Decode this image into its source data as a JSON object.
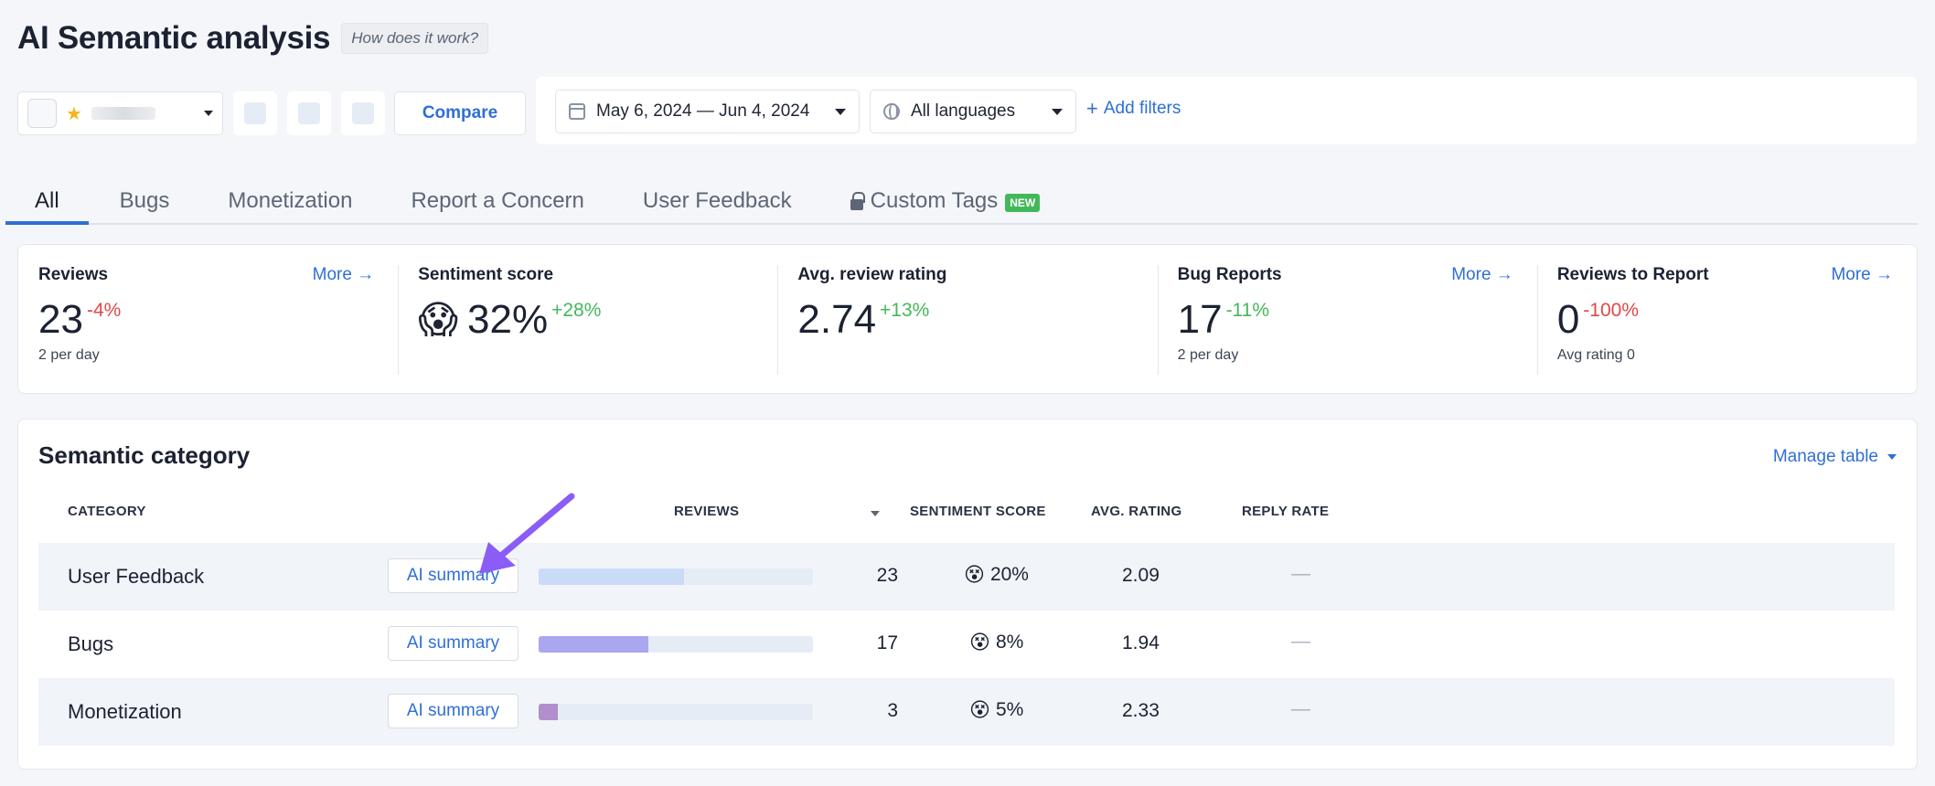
{
  "header": {
    "title": "AI Semantic analysis",
    "help_link": "How does it work?"
  },
  "toolbar": {
    "compare_label": "Compare",
    "date_range": "May 6, 2024 — Jun 4, 2024",
    "language": "All languages",
    "add_filters": "Add filters"
  },
  "tabs": [
    {
      "label": "All",
      "active": true
    },
    {
      "label": "Bugs"
    },
    {
      "label": "Monetization"
    },
    {
      "label": "Report a Concern"
    },
    {
      "label": "User Feedback"
    },
    {
      "label": "Custom Tags",
      "badge": "NEW",
      "icon": "lock-icon"
    }
  ],
  "stats": {
    "reviews": {
      "label": "Reviews",
      "more": "More →",
      "value": "23",
      "delta": "-4%",
      "sub": "2 per day"
    },
    "sentiment": {
      "label": "Sentiment score",
      "emoji": "😱",
      "value": "32%",
      "delta": "+28%"
    },
    "avg_rating": {
      "label": "Avg. review rating",
      "value": "2.74",
      "delta": "+13%"
    },
    "bug_reports": {
      "label": "Bug Reports",
      "more": "More →",
      "value": "17",
      "delta": "-11%",
      "sub": "2 per day"
    },
    "to_report": {
      "label": "Reviews to Report",
      "more": "More →",
      "value": "0",
      "delta": "-100%",
      "sub": "Avg rating 0"
    }
  },
  "semantic": {
    "title": "Semantic category",
    "manage_table": "Manage table",
    "columns": {
      "category": "CATEGORY",
      "reviews": "REVIEWS",
      "sentiment": "SENTIMENT SCORE",
      "rating": "AVG. RATING",
      "reply": "REPLY RATE"
    },
    "ai_summary_label": "AI summary",
    "rows": [
      {
        "name": "User Feedback",
        "reviews": "23",
        "fraction": 0.53,
        "bar_color": "#c9dbf7",
        "sentiment_emoji": "😵",
        "sentiment": "20%",
        "rating": "2.09",
        "reply": "—"
      },
      {
        "name": "Bugs",
        "reviews": "17",
        "fraction": 0.4,
        "bar_color": "#a9a7ef",
        "sentiment_emoji": "😵",
        "sentiment": "8%",
        "rating": "1.94",
        "reply": "—"
      },
      {
        "name": "Monetization",
        "reviews": "3",
        "fraction": 0.07,
        "bar_color": "#b08fcc",
        "sentiment_emoji": "😵",
        "sentiment": "5%",
        "rating": "2.33",
        "reply": "—"
      }
    ]
  },
  "colors": {
    "accent": "#2f6fd6",
    "positive": "#43b85a",
    "negative": "#e04848",
    "annotation_arrow": "#8b5cf6"
  }
}
